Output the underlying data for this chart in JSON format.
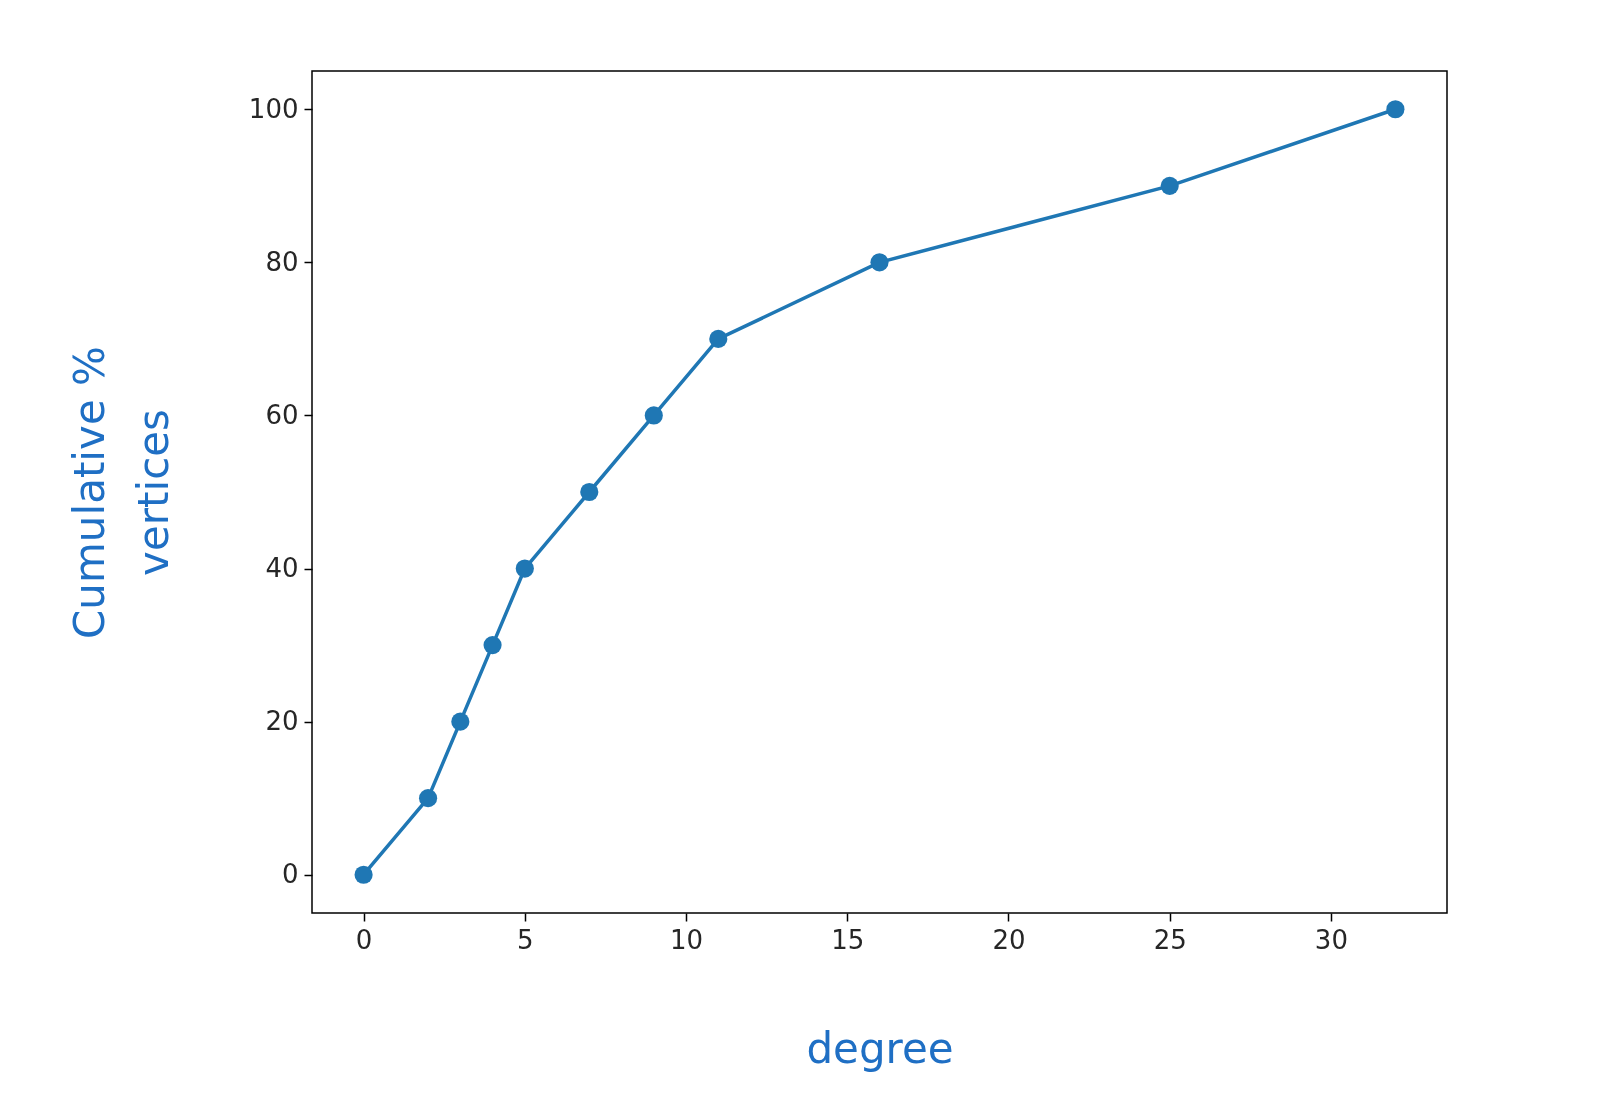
{
  "chart_data": {
    "type": "line",
    "xlabel": "degree",
    "ylabel": "Cumulative %\nvertices",
    "x": [
      0,
      2,
      3,
      4,
      5,
      7,
      9,
      11,
      16,
      25,
      32
    ],
    "series": [
      {
        "color": "#1f77b4",
        "values": [
          0,
          10,
          20,
          30,
          40,
          50,
          60,
          70,
          80,
          90,
          100
        ]
      }
    ],
    "xlim": [
      -1.6,
      33.6
    ],
    "ylim": [
      -5,
      105
    ],
    "xticks": [
      0,
      5,
      10,
      15,
      20,
      25,
      30
    ],
    "yticks": [
      0,
      20,
      40,
      60,
      80,
      100
    ],
    "grid": false,
    "marker": "circle",
    "line_style": "solid"
  }
}
